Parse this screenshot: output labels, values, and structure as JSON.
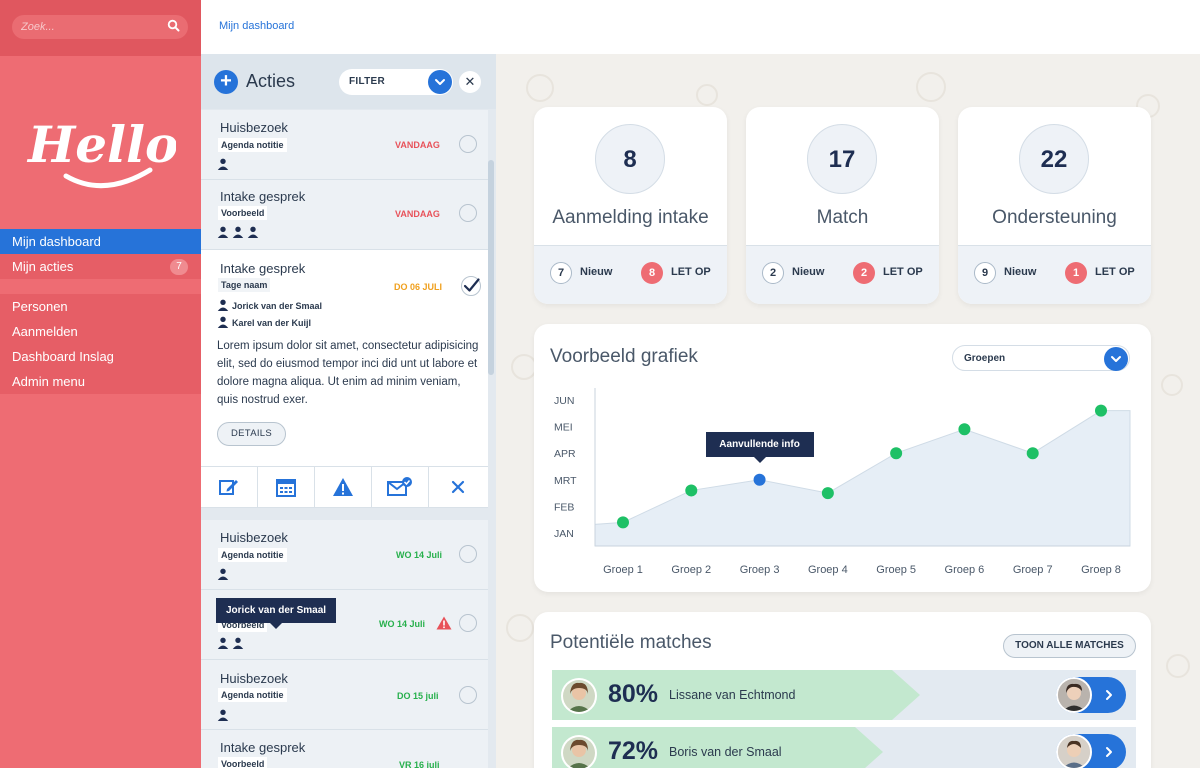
{
  "search": {
    "placeholder": "Zoek..."
  },
  "brand": {
    "logo_text": "Hello's"
  },
  "sidebar": {
    "items": [
      {
        "label": "Mijn dashboard",
        "active": true
      },
      {
        "label": "Mijn acties",
        "badge": "7"
      },
      {
        "label": "Personen"
      },
      {
        "label": "Aanmelden"
      },
      {
        "label": "Dashboard Inslag"
      },
      {
        "label": "Admin menu"
      }
    ]
  },
  "breadcrumb": {
    "current": "Mijn dashboard"
  },
  "actions": {
    "title": "Acties",
    "filter_label": "FILTER",
    "cards": [
      {
        "title": "Huisbezoek",
        "tag": "Agenda notitie",
        "date": "VANDAAG",
        "date_color": "red"
      },
      {
        "title": "Intake gesprek",
        "tag": "Voorbeeld",
        "date": "VANDAAG",
        "date_color": "red"
      },
      {
        "title": "Intake gesprek",
        "tag": "Tage naam",
        "date": "DO 06 JULI",
        "date_color": "orange",
        "checked": true,
        "people": [
          "Jorick van der Smaal",
          "Karel van der Kuijl"
        ],
        "text": "Lorem ipsum dolor sit amet, consectetur adipisicing elit, sed do eiusmod tempor inci did unt ut labore et dolore magna aliqua. Ut enim ad minim veniam, quis nostrud exer.",
        "details_label": "DETAILS"
      },
      {
        "title": "Huisbezoek",
        "tag": "Agenda notitie",
        "date": "WO 14 Juli",
        "date_color": "green"
      },
      {
        "title": "",
        "tag": "Voorbeeld",
        "date": "WO 14 Juli",
        "date_color": "green",
        "warning": true
      },
      {
        "title": "Huisbezoek",
        "tag": "Agenda notitie",
        "date": "DO 15 juli",
        "date_color": "green"
      },
      {
        "title": "Intake gesprek",
        "tag": "Voorbeeld",
        "date": "VR 16 juli",
        "date_color": "green"
      }
    ],
    "tooltip": "Jorick van der Smaal"
  },
  "stats": [
    {
      "value": "8",
      "label": "Aanmelding intake",
      "new_count": "7",
      "new_label": "Nieuw",
      "alert_count": "8",
      "alert_label": "LET OP"
    },
    {
      "value": "17",
      "label": "Match",
      "new_count": "2",
      "new_label": "Nieuw",
      "alert_count": "2",
      "alert_label": "LET OP"
    },
    {
      "value": "22",
      "label": "Ondersteuning",
      "new_count": "9",
      "new_label": "Nieuw",
      "alert_count": "1",
      "alert_label": "LET OP"
    }
  ],
  "chart": {
    "title": "Voorbeeld grafiek",
    "select_label": "Groepen",
    "tooltip": "Aanvullende info"
  },
  "chart_data": {
    "type": "line",
    "title": "Voorbeeld grafiek",
    "categories": [
      "Groep 1",
      "Groep 2",
      "Groep 3",
      "Groep 4",
      "Groep 5",
      "Groep 6",
      "Groep 7",
      "Groep 8"
    ],
    "y_categories": [
      "JAN",
      "FEB",
      "MRT",
      "APR",
      "MEI",
      "JUN"
    ],
    "values": [
      1.4,
      2.6,
      3.0,
      2.5,
      4.0,
      4.9,
      4.0,
      5.6
    ],
    "ylim": [
      1,
      6
    ],
    "highlight_index": 2,
    "annotation": "Aanvullende info",
    "point_color": "#1ec066",
    "highlight_color": "#2673d9",
    "area_color": "#e6eef6"
  },
  "matches": {
    "title": "Potentiële matches",
    "show_all_label": "TOON ALLE MATCHES",
    "rows": [
      {
        "percent": "80%",
        "fraction": 0.8,
        "name": "Lissane van Echtmond"
      },
      {
        "percent": "72%",
        "fraction": 0.72,
        "name": "Boris van der Smaal"
      }
    ]
  },
  "colors": {
    "brand": "#ee6c73",
    "accent": "#2673d9",
    "navy": "#1e2e52"
  }
}
